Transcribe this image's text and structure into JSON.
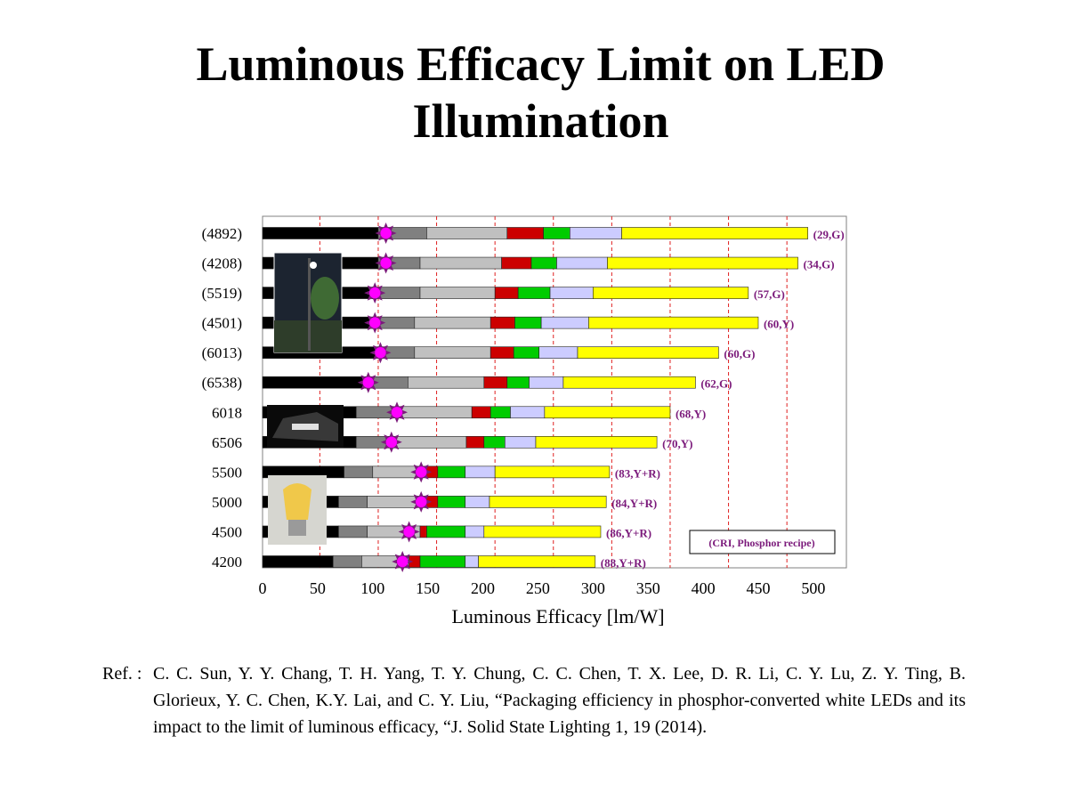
{
  "title": "Luminous Efficacy Limit on LED Illumination",
  "chart_data": {
    "type": "bar",
    "stacked": true,
    "orientation": "horizontal",
    "xlabel": "Luminous Efficacy [lm/W]",
    "xlim": [
      0,
      530
    ],
    "xticks": [
      0,
      50,
      100,
      150,
      200,
      250,
      300,
      350,
      400,
      450,
      500
    ],
    "vertical_dashed_gridlines": [
      52,
      105,
      158,
      211,
      264,
      317,
      370,
      423,
      476
    ],
    "legend_box": "(CRI, Phosphor recipe)",
    "segment_colors": [
      "#000000",
      "#808080",
      "#c0c0c0",
      "#cc0000",
      "#00cc00",
      "#ccccff",
      "#ffff00"
    ],
    "rows": [
      {
        "label": "(4892)",
        "edges": [
          0,
          105,
          149,
          222,
          255,
          279,
          326,
          495
        ],
        "marker": 112,
        "annotation": "(29,G)"
      },
      {
        "label": "(4208)",
        "edges": [
          0,
          105,
          143,
          217,
          244,
          267,
          313,
          486
        ],
        "marker": 112,
        "annotation": "(34,G)"
      },
      {
        "label": "(5519)",
        "edges": [
          0,
          100,
          143,
          211,
          232,
          261,
          300,
          441
        ],
        "marker": 102,
        "annotation": "(57,G)"
      },
      {
        "label": "(4501)",
        "edges": [
          0,
          100,
          138,
          207,
          229,
          253,
          296,
          450
        ],
        "marker": 102,
        "annotation": "(60,Y)"
      },
      {
        "label": "(6013)",
        "edges": [
          0,
          105,
          138,
          207,
          228,
          251,
          286,
          414
        ],
        "marker": 107,
        "annotation": "(60,G)"
      },
      {
        "label": "(6538)",
        "edges": [
          0,
          95,
          132,
          201,
          222,
          242,
          273,
          393
        ],
        "marker": 96,
        "annotation": "(62,G)"
      },
      {
        "label": "6018",
        "edges": [
          0,
          85,
          122,
          190,
          207,
          225,
          256,
          370
        ],
        "marker": 122,
        "annotation": "(68,Y)"
      },
      {
        "label": "6506",
        "edges": [
          0,
          85,
          117,
          185,
          201,
          220,
          248,
          358
        ],
        "marker": 117,
        "annotation": "(70,Y)"
      },
      {
        "label": "5500",
        "edges": [
          0,
          74,
          100,
          143,
          159,
          184,
          211,
          315
        ],
        "marker": 144,
        "annotation": "(83,Y+R)"
      },
      {
        "label": "5000",
        "edges": [
          0,
          69,
          95,
          143,
          159,
          184,
          206,
          312
        ],
        "marker": 144,
        "annotation": "(84,Y+R)"
      },
      {
        "label": "4500",
        "edges": [
          0,
          69,
          95,
          143,
          149,
          184,
          201,
          307
        ],
        "marker": 133,
        "annotation": "(86,Y+R)"
      },
      {
        "label": "4200",
        "edges": [
          0,
          64,
          90,
          133,
          143,
          184,
          196,
          302
        ],
        "marker": 127,
        "annotation": "(88,Y+R)"
      }
    ]
  },
  "reference": {
    "label": "Ref. :",
    "text": "C. C. Sun, Y. Y. Chang, T. H. Yang, T. Y. Chung, C. C. Chen, T. X. Lee, D. R. Li, C. Y. Lu, Z. Y. Ting, B. Glorieux, Y. C. Chen, K.Y. Lai, and C. Y. Liu, “Packaging efficiency in phosphor-converted white LEDs and its impact to the limit of luminous efficacy, “J. Solid State Lighting 1, 19 (2014)."
  }
}
